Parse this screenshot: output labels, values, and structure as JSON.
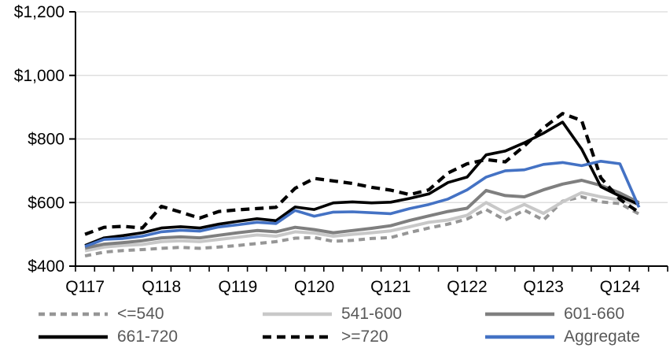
{
  "chart_data": {
    "type": "line",
    "title": "",
    "unit": "USD",
    "grid": "horizontal",
    "legend_position": "bottom-two-rows",
    "ylim": [
      400,
      1200
    ],
    "ytick_interval": 200,
    "ytick_labels": [
      "$400",
      "$600",
      "$800",
      "$1,000",
      "$1,200"
    ],
    "x_tick_labels": [
      "Q117",
      "Q118",
      "Q119",
      "Q120",
      "Q121",
      "Q122",
      "Q123",
      "Q124"
    ],
    "x_label_interval": 4,
    "axis_slots": 31,
    "categories": [
      "Q117",
      "Q217",
      "Q317",
      "Q417",
      "Q118",
      "Q218",
      "Q318",
      "Q418",
      "Q119",
      "Q219",
      "Q319",
      "Q419",
      "Q120",
      "Q220",
      "Q320",
      "Q420",
      "Q121",
      "Q221",
      "Q321",
      "Q421",
      "Q122",
      "Q222",
      "Q322",
      "Q422",
      "Q123",
      "Q223",
      "Q323",
      "Q423",
      "Q124",
      "Q224"
    ],
    "series": [
      {
        "name": "<=540",
        "color": "#969696",
        "dash": "8 6",
        "width": 4,
        "values": [
          432,
          444,
          449,
          452,
          456,
          459,
          456,
          460,
          465,
          471,
          477,
          488,
          490,
          478,
          481,
          487,
          490,
          506,
          520,
          532,
          548,
          578,
          545,
          576,
          545,
          604,
          618,
          602,
          597,
          564
        ]
      },
      {
        "name": "541-600",
        "color": "#C8C8C8",
        "dash": null,
        "width": 4,
        "values": [
          448,
          460,
          465,
          468,
          477,
          480,
          477,
          484,
          491,
          498,
          494,
          508,
          504,
          494,
          500,
          505,
          511,
          524,
          538,
          545,
          560,
          600,
          568,
          594,
          566,
          602,
          631,
          618,
          608,
          593
        ]
      },
      {
        "name": "601-660",
        "color": "#7F7F7F",
        "dash": null,
        "width": 4,
        "values": [
          457,
          469,
          474,
          480,
          489,
          492,
          489,
          497,
          505,
          512,
          508,
          522,
          515,
          505,
          512,
          519,
          527,
          544,
          558,
          572,
          582,
          638,
          622,
          618,
          640,
          658,
          670,
          654,
          630,
          600
        ]
      },
      {
        "name": "661-720",
        "color": "#000000",
        "dash": null,
        "width": 3.6,
        "values": [
          465,
          489,
          496,
          505,
          520,
          524,
          520,
          532,
          541,
          549,
          543,
          586,
          578,
          599,
          602,
          599,
          601,
          613,
          627,
          663,
          680,
          750,
          762,
          788,
          818,
          853,
          768,
          650,
          620,
          594
        ]
      },
      {
        "name": ">=720",
        "color": "#000000",
        "dash": "11 7",
        "width": 4.2,
        "values": [
          500,
          522,
          525,
          520,
          588,
          570,
          551,
          572,
          577,
          581,
          585,
          645,
          676,
          668,
          660,
          648,
          639,
          625,
          640,
          693,
          722,
          735,
          728,
          778,
          835,
          880,
          858,
          678,
          610,
          569
        ]
      },
      {
        "name": "Aggregate",
        "color": "#4472C4",
        "dash": null,
        "width": 3.6,
        "values": [
          462,
          484,
          487,
          494,
          508,
          513,
          510,
          523,
          530,
          538,
          534,
          575,
          557,
          570,
          571,
          568,
          565,
          581,
          594,
          611,
          640,
          680,
          700,
          703,
          720,
          726,
          716,
          730,
          722,
          585
        ]
      }
    ]
  },
  "legend": {
    "rows": [
      [
        0,
        1,
        2
      ],
      [
        3,
        4,
        5
      ]
    ]
  },
  "colors": {
    "background": "#FFFFFF",
    "gridline": "#D9D9D9",
    "axis": "#000000",
    "axis_label_text": "#000000",
    "legend_text": "#595959",
    "accent_blue": "#4472C4"
  }
}
